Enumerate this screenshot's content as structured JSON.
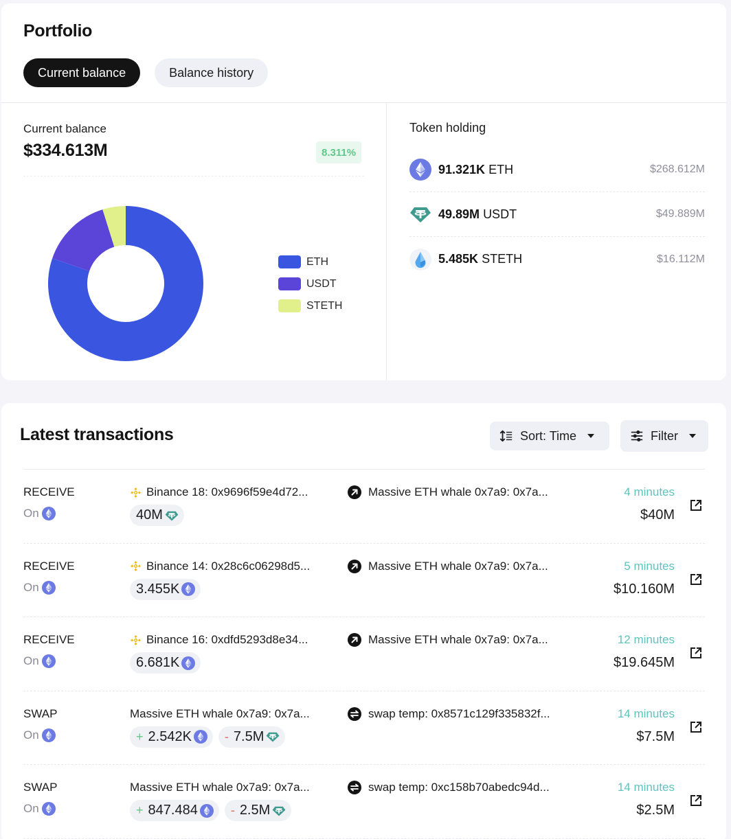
{
  "portfolio": {
    "title": "Portfolio",
    "tabs": [
      {
        "label": "Current balance",
        "active": true
      },
      {
        "label": "Balance history",
        "active": false
      }
    ],
    "balance_label": "Current balance",
    "balance_value": "$334.613M",
    "change_pct": "8.311%",
    "token_holding_title": "Token holding",
    "holdings": [
      {
        "amount": "91.321K",
        "symbol": "ETH",
        "usd": "$268.612M",
        "icon": "eth-icon"
      },
      {
        "amount": "49.89M",
        "symbol": "USDT",
        "usd": "$49.889M",
        "icon": "usdt-icon"
      },
      {
        "amount": "5.485K",
        "symbol": "STETH",
        "usd": "$16.112M",
        "icon": "steth-icon"
      }
    ]
  },
  "chart_data": {
    "type": "pie",
    "donut": true,
    "title": "",
    "categories": [
      "ETH",
      "USDT",
      "STETH"
    ],
    "values": [
      268.612,
      49.889,
      16.112
    ],
    "unit": "$M",
    "colors": [
      "#3a56e0",
      "#5b45d9",
      "#e1f08a"
    ],
    "legend_position": "right"
  },
  "colors": {
    "eth": "#3a56e0",
    "usdt": "#5b45d9",
    "steth": "#e1f08a",
    "positive": "#5ec98a",
    "negative": "#e36a6a",
    "time": "#5cc3bd"
  },
  "transactions": {
    "title": "Latest transactions",
    "sort_label": "Sort: Time",
    "filter_label": "Filter",
    "rows": [
      {
        "type": "RECEIVE",
        "chain_label": "On",
        "from": "Binance 18: 0x9696f59e4d72...",
        "from_icon": "binance",
        "to": "Massive ETH whale 0x7a9: 0x7a...",
        "to_icon": "arrow",
        "pills": [
          {
            "sign": "",
            "amount": "40M",
            "token": "usdt"
          }
        ],
        "time": "4 minutes",
        "usd": "$40M"
      },
      {
        "type": "RECEIVE",
        "chain_label": "On",
        "from": "Binance 14: 0x28c6c06298d5...",
        "from_icon": "binance",
        "to": "Massive ETH whale 0x7a9: 0x7a...",
        "to_icon": "arrow",
        "pills": [
          {
            "sign": "",
            "amount": "3.455K",
            "token": "eth"
          }
        ],
        "time": "5 minutes",
        "usd": "$10.160M"
      },
      {
        "type": "RECEIVE",
        "chain_label": "On",
        "from": "Binance 16: 0xdfd5293d8e34...",
        "from_icon": "binance",
        "to": "Massive ETH whale 0x7a9: 0x7a...",
        "to_icon": "arrow",
        "pills": [
          {
            "sign": "",
            "amount": "6.681K",
            "token": "eth"
          }
        ],
        "time": "12 minutes",
        "usd": "$19.645M"
      },
      {
        "type": "SWAP",
        "chain_label": "On",
        "from": "Massive ETH whale 0x7a9: 0x7a...",
        "from_icon": "",
        "to": "swap temp: 0x8571c129f335832f...",
        "to_icon": "swap",
        "pills": [
          {
            "sign": "+",
            "amount": "2.542K",
            "token": "eth"
          },
          {
            "sign": "-",
            "amount": "7.5M",
            "token": "usdt"
          }
        ],
        "time": "14 minutes",
        "usd": "$7.5M"
      },
      {
        "type": "SWAP",
        "chain_label": "On",
        "from": "Massive ETH whale 0x7a9: 0x7a...",
        "from_icon": "",
        "to": "swap temp: 0xc158b70abedc94d...",
        "to_icon": "swap",
        "pills": [
          {
            "sign": "+",
            "amount": "847.484",
            "token": "eth"
          },
          {
            "sign": "-",
            "amount": "2.5M",
            "token": "usdt"
          }
        ],
        "time": "14 minutes",
        "usd": "$2.5M"
      }
    ]
  }
}
